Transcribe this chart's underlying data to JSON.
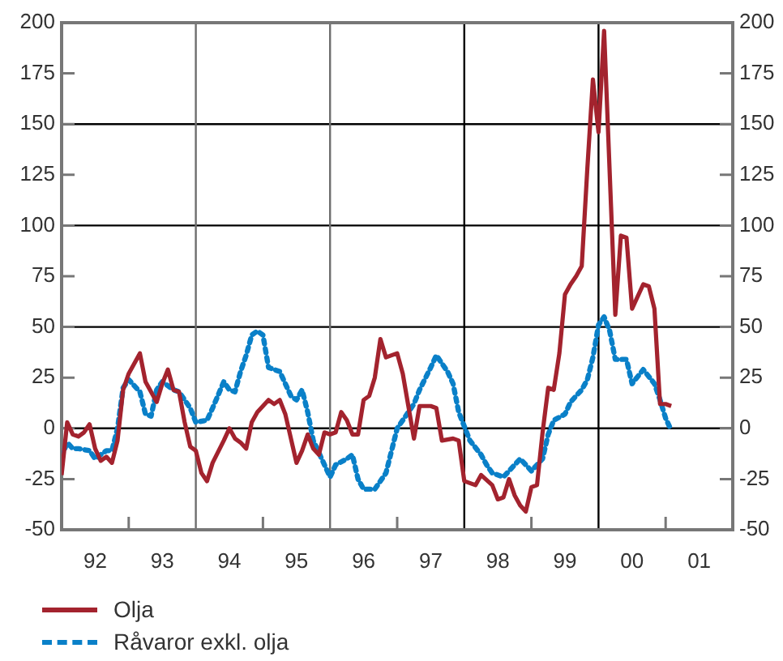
{
  "chart_data": {
    "type": "line",
    "xlim": [
      "1992",
      "2002"
    ],
    "xticks": [
      {
        "value": "1992-07",
        "label": "92"
      },
      {
        "value": "1993",
        "label": null
      },
      {
        "value": "1993-07",
        "label": "93"
      },
      {
        "value": "1994-07",
        "label": "94"
      },
      {
        "value": "1995",
        "label": null
      },
      {
        "value": "1995-07",
        "label": "95"
      },
      {
        "value": "1996-07",
        "label": "96"
      },
      {
        "value": "1997",
        "label": null
      },
      {
        "value": "1997-07",
        "label": "97"
      },
      {
        "value": "1998-07",
        "label": "98"
      },
      {
        "value": "1999",
        "label": null
      },
      {
        "value": "1999-07",
        "label": "99"
      },
      {
        "value": "2000-07",
        "label": "00"
      },
      {
        "value": "2001",
        "label": null
      },
      {
        "value": "2001-07",
        "label": "01"
      }
    ],
    "ylim": [
      -50,
      200
    ],
    "yticks": [
      -50,
      -25,
      0,
      25,
      50,
      75,
      100,
      125,
      150,
      175,
      200
    ],
    "y2lim": [
      -50,
      200
    ],
    "y2ticks": [
      -50,
      -25,
      0,
      25,
      50,
      75,
      100,
      125,
      150,
      175,
      200
    ],
    "grid": false,
    "legend": "bottom",
    "marker": "none",
    "ref_lines": [
      {
        "axis": "y",
        "value": 0,
        "color": "#000000"
      },
      {
        "axis": "y",
        "value": 50,
        "color": "#000000"
      },
      {
        "axis": "y",
        "value": 100,
        "color": "#000000"
      },
      {
        "axis": "y",
        "value": 150,
        "color": "#000000"
      },
      {
        "axis": "x",
        "value": "1994",
        "color": "#6e6e6e"
      },
      {
        "axis": "x",
        "value": "1996",
        "color": "#6e6e6e"
      },
      {
        "axis": "x",
        "value": "1998",
        "color": "#000000"
      },
      {
        "axis": "x",
        "value": "2000",
        "color": "#000000"
      }
    ],
    "series": [
      {
        "name": "Olja",
        "color": "#a3232e",
        "line_style": "solid",
        "x": [
          "1992-01",
          "1992-02",
          "1992-03",
          "1992-04",
          "1992-05",
          "1992-06",
          "1992-07",
          "1992-08",
          "1992-09",
          "1992-10",
          "1992-11",
          "1992-12",
          "1993-01",
          "1993-03",
          "1993-04",
          "1993-06",
          "1993-07",
          "1993-08",
          "1993-09",
          "1993-10",
          "1993-11",
          "1993-12",
          "1994-01",
          "1994-02",
          "1994-03",
          "1994-04",
          "1994-06",
          "1994-07",
          "1994-08",
          "1994-09",
          "1994-10",
          "1994-11",
          "1994-12",
          "1995-02",
          "1995-03",
          "1995-04",
          "1995-05",
          "1995-07",
          "1995-08",
          "1995-09",
          "1995-10",
          "1995-11",
          "1995-12",
          "1996-01",
          "1996-02",
          "1996-03",
          "1996-04",
          "1996-05",
          "1996-06",
          "1996-07",
          "1996-08",
          "1996-09",
          "1996-10",
          "1996-11",
          "1997-01",
          "1997-02",
          "1997-03",
          "1997-04",
          "1997-05",
          "1997-07",
          "1997-08",
          "1997-09",
          "1997-11",
          "1997-12",
          "1998-01",
          "1998-03",
          "1998-04",
          "1998-06",
          "1998-07",
          "1998-08",
          "1998-09",
          "1998-10",
          "1998-11",
          "1998-12",
          "1999-01",
          "1999-02",
          "1999-03",
          "1999-04",
          "1999-05",
          "1999-06",
          "1999-07",
          "1999-08",
          "1999-09",
          "1999-10",
          "1999-11",
          "1999-12",
          "2000-01",
          "2000-02",
          "2000-04",
          "2000-05",
          "2000-06",
          "2000-07",
          "2000-09",
          "2000-10",
          "2000-11",
          "2000-12",
          "2001-01",
          "2001-02"
        ],
        "values": [
          -23,
          3,
          -3,
          -4,
          -2,
          2,
          -10,
          -16,
          -14,
          -17,
          -6,
          19,
          27,
          37,
          23,
          13,
          22,
          29,
          19,
          18,
          3,
          -9,
          -11,
          -22,
          -26,
          -17,
          -6,
          0,
          -5,
          -7,
          -10,
          3,
          8,
          14,
          12,
          14,
          7,
          -17,
          -11,
          -3,
          -10,
          -13,
          -2,
          -3,
          -2,
          8,
          4,
          -3,
          -3,
          14,
          16,
          25,
          44,
          35,
          37,
          27,
          11,
          -5,
          11,
          11,
          10,
          -6,
          -5,
          -6,
          -26,
          -28,
          -23,
          -28,
          -35,
          -34,
          -25,
          -33,
          -38,
          -41,
          -29,
          -28,
          -2,
          20,
          19,
          37,
          66,
          71,
          75,
          80,
          128,
          172,
          146,
          196,
          56,
          95,
          94,
          59,
          71,
          70,
          59,
          12,
          12,
          11
        ]
      },
      {
        "name": "Råvaror exkl. olja",
        "color": "#0a80c8",
        "line_style": "dotted",
        "x": [
          "1992-01",
          "1992-02",
          "1992-03",
          "1992-04",
          "1992-06",
          "1992-07",
          "1992-09",
          "1992-10",
          "1992-11",
          "1992-12",
          "1993-01",
          "1993-03",
          "1993-04",
          "1993-05",
          "1993-06",
          "1993-07",
          "1993-09",
          "1993-10",
          "1993-12",
          "1994-01",
          "1994-03",
          "1994-04",
          "1994-06",
          "1994-07",
          "1994-08",
          "1994-09",
          "1994-10",
          "1994-11",
          "1994-12",
          "1995-01",
          "1995-02",
          "1995-04",
          "1995-06",
          "1995-07",
          "1995-08",
          "1995-09",
          "1995-10",
          "1995-12",
          "1996-01",
          "1996-02",
          "1996-04",
          "1996-05",
          "1996-06",
          "1996-07",
          "1996-09",
          "1996-11",
          "1996-12",
          "1997-01",
          "1997-03",
          "1997-04",
          "1997-05",
          "1997-07",
          "1997-08",
          "1997-10",
          "1997-11",
          "1997-12",
          "1998-02",
          "1998-04",
          "1998-05",
          "1998-06",
          "1998-08",
          "1998-10",
          "1998-11",
          "1999-01",
          "1999-03",
          "1999-04",
          "1999-05",
          "1999-07",
          "1999-08",
          "1999-10",
          "1999-11",
          "1999-12",
          "2000-01",
          "2000-02",
          "2000-03",
          "2000-04",
          "2000-06",
          "2000-07",
          "2000-09",
          "2000-11",
          "2000-12",
          "2001-01",
          "2001-02"
        ],
        "values": [
          -14,
          -7,
          -10,
          -10,
          -11,
          -15,
          -11,
          -11,
          0,
          20,
          24,
          18,
          7,
          6,
          19,
          23,
          19,
          18,
          10,
          3,
          4,
          10,
          23,
          19,
          18,
          28,
          36,
          46,
          48,
          46,
          30,
          28,
          16,
          14,
          19,
          8,
          -6,
          -18,
          -24,
          -18,
          -15,
          -13,
          -25,
          -30,
          -30,
          -22,
          -11,
          0,
          8,
          12,
          19,
          30,
          36,
          28,
          22,
          8,
          -6,
          -13,
          -18,
          -22,
          -24,
          -18,
          -15,
          -21,
          -15,
          -3,
          4,
          7,
          13,
          19,
          24,
          35,
          51,
          55,
          48,
          34,
          34,
          22,
          29,
          22,
          14,
          5,
          -1
        ]
      }
    ]
  }
}
